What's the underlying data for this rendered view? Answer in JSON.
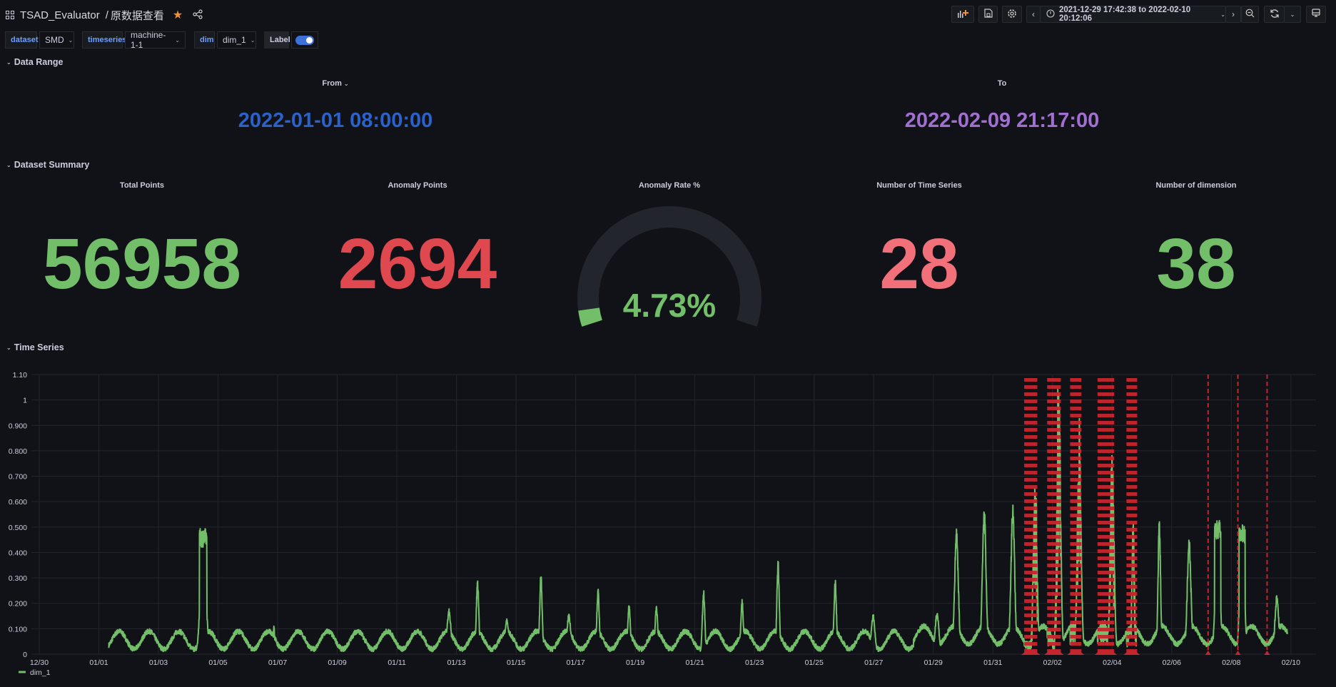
{
  "header": {
    "dashboard_name": "TSAD_Evaluator",
    "separator": "/",
    "page_name": "原数据查看",
    "time_range": "2021-12-29 17:42:38 to 2022-02-10 20:12:06",
    "icons": [
      "grid-icon",
      "star-icon",
      "share-icon",
      "add-panel-icon",
      "save-icon",
      "settings-icon",
      "chevron-left-icon",
      "clock-icon",
      "chevron-down-icon",
      "chevron-right-icon",
      "zoom-out-icon",
      "refresh-icon",
      "tv-icon"
    ]
  },
  "variables": {
    "dataset": {
      "label": "dataset",
      "value": "SMD"
    },
    "timeseries": {
      "label": "timeseries",
      "value": "machine-1-1"
    },
    "dim": {
      "label": "dim",
      "value": "dim_1"
    },
    "label": {
      "label": "Label",
      "enabled": true
    }
  },
  "data_range": {
    "row_title": "Data Range",
    "from": {
      "title": "From",
      "value": "2022-01-01 08:00:00",
      "color": "#2a62c9"
    },
    "to": {
      "title": "To",
      "value": "2022-02-09 21:17:00",
      "color": "#a16fd2"
    }
  },
  "summary": {
    "row_title": "Dataset Summary",
    "total_points": {
      "title": "Total Points",
      "value": "56958",
      "color": "#73bf69"
    },
    "anomaly_points": {
      "title": "Anomaly Points",
      "value": "2694",
      "color": "#e0484f"
    },
    "anomaly_rate": {
      "title": "Anomaly Rate %",
      "value": "4.73%",
      "percent": 4.73,
      "color": "#73bf69"
    },
    "num_series": {
      "title": "Number of Time Series",
      "value": "28",
      "color": "#f2707a"
    },
    "num_dims": {
      "title": "Number of dimension",
      "value": "38",
      "color": "#73bf69"
    }
  },
  "timeseries_row": {
    "row_title": "Time Series"
  },
  "chart_data": {
    "type": "line",
    "title": "",
    "xlabel": "",
    "ylabel": "",
    "x_range": [
      "2021-12-29 17:42",
      "2022-02-10 20:12"
    ],
    "ylim": [
      0,
      1.1
    ],
    "yticks": [
      "0",
      "0.100",
      "0.200",
      "0.300",
      "0.400",
      "0.500",
      "0.600",
      "0.700",
      "0.800",
      "0.900",
      "1",
      "1.10"
    ],
    "xticks": [
      "12/30",
      "01/01",
      "01/03",
      "01/05",
      "01/07",
      "01/09",
      "01/11",
      "01/13",
      "01/15",
      "01/17",
      "01/19",
      "01/21",
      "01/23",
      "01/25",
      "01/27",
      "01/29",
      "01/31",
      "02/02",
      "02/04",
      "02/06",
      "02/08",
      "02/10"
    ],
    "grid": true,
    "legend": {
      "placement": "bottom-left",
      "entries": [
        "dim_1"
      ]
    },
    "series": [
      {
        "name": "dim_1",
        "color": "#73bf69",
        "data_start": "2022-01-01 08:00",
        "data_end": "2022-02-09 21:17",
        "baseline_low": 0.02,
        "baseline_high": 0.09,
        "peaks": [
          {
            "t": "2022-01-04 12:00",
            "v": 0.495,
            "hours": 6
          },
          {
            "t": "2022-01-06 21:00",
            "v": 0.12,
            "hours": 1
          },
          {
            "t": "2022-01-12 18:00",
            "v": 0.18,
            "hours": 3
          },
          {
            "t": "2022-01-13 17:00",
            "v": 0.3,
            "hours": 2
          },
          {
            "t": "2022-01-14 16:30",
            "v": 0.14,
            "hours": 3
          },
          {
            "t": "2022-01-15 20:00",
            "v": 0.32,
            "hours": 2
          },
          {
            "t": "2022-01-16 18:30",
            "v": 0.16,
            "hours": 3
          },
          {
            "t": "2022-01-17 18:00",
            "v": 0.26,
            "hours": 2
          },
          {
            "t": "2022-01-18 19:00",
            "v": 0.2,
            "hours": 2
          },
          {
            "t": "2022-01-19 17:00",
            "v": 0.2,
            "hours": 2
          },
          {
            "t": "2022-01-21 07:00",
            "v": 0.26,
            "hours": 2
          },
          {
            "t": "2022-01-22 14:00",
            "v": 0.22,
            "hours": 2
          },
          {
            "t": "2022-01-23 19:00",
            "v": 0.37,
            "hours": 2
          },
          {
            "t": "2022-01-25 17:00",
            "v": 0.3,
            "hours": 2
          },
          {
            "t": "2022-01-26 23:30",
            "v": 0.16,
            "hours": 3
          },
          {
            "t": "2022-01-29 03:00",
            "v": 0.17,
            "hours": 3
          },
          {
            "t": "2022-01-29 18:40",
            "v": 0.5,
            "hours": 3
          },
          {
            "t": "2022-01-30 17:00",
            "v": 0.58,
            "hours": 3
          },
          {
            "t": "2022-01-31 16:00",
            "v": 0.59,
            "hours": 3
          },
          {
            "t": "2022-02-01 10:00",
            "v": 0.67,
            "hours": 3
          },
          {
            "t": "2022-02-02 05:00",
            "v": 1.0,
            "hours": 3
          },
          {
            "t": "2022-02-02 21:30",
            "v": 0.83,
            "hours": 3
          },
          {
            "t": "2022-02-04 00:00",
            "v": 0.81,
            "hours": 3
          },
          {
            "t": "2022-02-04 17:00",
            "v": 0.54,
            "hours": 2
          },
          {
            "t": "2022-02-05 14:00",
            "v": 0.54,
            "hours": 2
          },
          {
            "t": "2022-02-06 14:00",
            "v": 0.46,
            "hours": 3
          },
          {
            "t": "2022-02-07 13:00",
            "v": 0.53,
            "hours": 5
          },
          {
            "t": "2022-02-08 08:40",
            "v": 0.51,
            "hours": 5
          },
          {
            "t": "2022-02-09 12:40",
            "v": 0.24,
            "hours": 3
          }
        ]
      }
    ],
    "anomaly_color": "#c4262e",
    "anomaly_windows": [
      {
        "start": "2022-02-01 01:12",
        "end": "2022-02-01 11:45"
      },
      {
        "start": "2022-02-01 19:40",
        "end": "2022-02-02 06:43"
      },
      {
        "start": "2022-02-02 14:10",
        "end": "2022-02-02 23:17"
      },
      {
        "start": "2022-02-03 12:14",
        "end": "2022-02-04 01:40"
      },
      {
        "start": "2022-02-04 11:31",
        "end": "2022-02-04 20:10"
      }
    ],
    "anomaly_points": [
      "2022-02-07 05:17",
      "2022-02-08 05:17",
      "2022-02-09 04:48"
    ]
  }
}
